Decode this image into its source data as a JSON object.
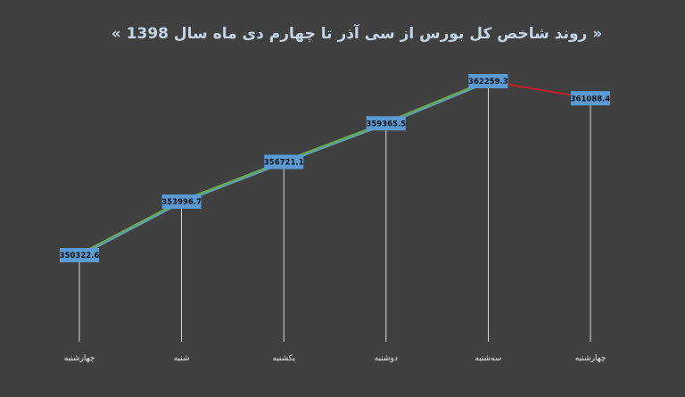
{
  "chart_data": {
    "type": "line",
    "title": "« روند شاخص کل بورس از سی آذر تا چهارم دی ماه سال 1398 »",
    "categories": [
      "چهارشنبه",
      "شنبه",
      "یکشنبه",
      "دوشنبه",
      "سه‌شنبه",
      "چهارشنبه"
    ],
    "series": [
      {
        "values": [
          350322.6,
          353996.7,
          356721.1,
          359365.5,
          362259.3,
          361088.4
        ]
      }
    ],
    "ylim": [
      345600,
      363300
    ],
    "grid": false,
    "legend": "none",
    "data_labels": [
      "350322.6",
      "353996.7",
      "356721.1",
      "359365.5",
      "362259.3",
      "361088.4"
    ]
  },
  "colors": {
    "background": "#404040",
    "up_line": "#6aa84f",
    "up_line_inner": "#5b9bd5",
    "down_line": "#c0202a",
    "label_box": "#5b9bd5",
    "drop_line": "#ffffff",
    "title": "#c5d3e6",
    "axis_text": "#f0f0f0"
  }
}
